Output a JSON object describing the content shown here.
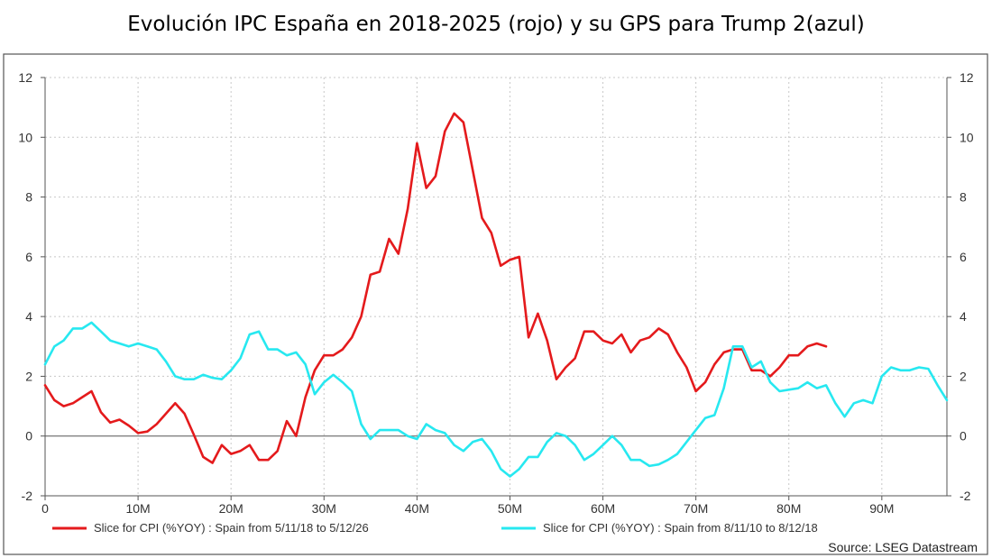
{
  "title": "Evolución IPC España en 2018-2025 (rojo) y su GPS para Trump 2(azul)",
  "chart_data": {
    "type": "line",
    "title": "Evolución IPC España en 2018-2025 (rojo) y su GPS para Trump 2(azul)",
    "xlabel": "",
    "ylabel": "",
    "xlim": [
      0,
      97
    ],
    "ylim": [
      -2,
      12
    ],
    "grid": true,
    "x_ticks": [
      0,
      10,
      20,
      30,
      40,
      50,
      60,
      70,
      80,
      90
    ],
    "x_tick_labels": [
      "0",
      "10M",
      "20M",
      "30M",
      "40M",
      "50M",
      "60M",
      "70M",
      "80M",
      "90M"
    ],
    "y_ticks": [
      -2,
      0,
      2,
      4,
      6,
      8,
      10,
      12
    ],
    "y_tick_labels": [
      "-2",
      "0",
      "2",
      "4",
      "6",
      "8",
      "10",
      "12"
    ],
    "legend_position": "bottom",
    "source": "Source: LSEG Datastream",
    "series": [
      {
        "name": "Slice for CPI (%YOY) : Spain from 5/11/18 to 5/12/26",
        "color": "#e41a1c",
        "x": [
          0,
          1,
          2,
          3,
          4,
          5,
          6,
          7,
          8,
          9,
          10,
          11,
          12,
          13,
          14,
          15,
          16,
          17,
          18,
          19,
          20,
          21,
          22,
          23,
          24,
          25,
          26,
          27,
          28,
          29,
          30,
          31,
          32,
          33,
          34,
          35,
          36,
          37,
          38,
          39,
          40,
          41,
          42,
          43,
          44,
          45,
          46,
          47,
          48,
          49,
          50,
          51,
          52,
          53,
          54,
          55,
          56,
          57,
          58,
          59,
          60,
          61,
          62,
          63,
          64,
          65,
          66,
          67,
          68,
          69,
          70,
          71,
          72,
          73,
          74,
          75,
          76,
          77,
          78,
          79,
          80,
          81,
          82,
          83,
          84
        ],
        "values": [
          1.7,
          1.2,
          1.0,
          1.1,
          1.3,
          1.5,
          0.8,
          0.45,
          0.55,
          0.35,
          0.1,
          0.15,
          0.4,
          0.75,
          1.1,
          0.75,
          0.05,
          -0.7,
          -0.9,
          -0.3,
          -0.6,
          -0.5,
          -0.3,
          -0.8,
          -0.8,
          -0.5,
          0.5,
          0.0,
          1.3,
          2.2,
          2.7,
          2.7,
          2.9,
          3.3,
          4.0,
          5.4,
          5.5,
          6.6,
          6.1,
          7.6,
          9.8,
          8.3,
          8.7,
          10.2,
          10.8,
          10.5,
          8.9,
          7.3,
          6.8,
          5.7,
          5.9,
          6.0,
          3.3,
          4.1,
          3.2,
          1.9,
          2.3,
          2.6,
          3.5,
          3.5,
          3.2,
          3.1,
          3.4,
          2.8,
          3.2,
          3.3,
          3.6,
          3.4,
          2.8,
          2.3,
          1.5,
          1.8,
          2.4,
          2.8,
          2.9,
          2.9,
          2.2,
          2.2,
          2.0,
          2.3,
          2.7,
          2.7,
          3.0,
          3.1,
          3.0
        ]
      },
      {
        "name": "Slice for CPI (%YOY) : Spain from 8/11/10 to 8/12/18",
        "color": "#27e8f0",
        "x": [
          0,
          1,
          2,
          3,
          4,
          5,
          6,
          7,
          8,
          9,
          10,
          11,
          12,
          13,
          14,
          15,
          16,
          17,
          18,
          19,
          20,
          21,
          22,
          23,
          24,
          25,
          26,
          27,
          28,
          29,
          30,
          31,
          32,
          33,
          34,
          35,
          36,
          37,
          38,
          39,
          40,
          41,
          42,
          43,
          44,
          45,
          46,
          47,
          48,
          49,
          50,
          51,
          52,
          53,
          54,
          55,
          56,
          57,
          58,
          59,
          60,
          61,
          62,
          63,
          64,
          65,
          66,
          67,
          68,
          69,
          70,
          71,
          72,
          73,
          74,
          75,
          76,
          77,
          78,
          79,
          80,
          81,
          82,
          83,
          84,
          85,
          86,
          87,
          88,
          89,
          90,
          91,
          92,
          93,
          94,
          95,
          96,
          97
        ],
        "values": [
          2.4,
          3.0,
          3.2,
          3.6,
          3.6,
          3.8,
          3.5,
          3.2,
          3.1,
          3.0,
          3.1,
          3.0,
          2.9,
          2.5,
          2.0,
          1.9,
          1.9,
          2.05,
          1.95,
          1.9,
          2.2,
          2.6,
          3.4,
          3.5,
          2.9,
          2.9,
          2.7,
          2.8,
          2.4,
          1.4,
          1.8,
          2.05,
          1.8,
          1.5,
          0.4,
          -0.1,
          0.2,
          0.2,
          0.2,
          0.0,
          -0.1,
          0.4,
          0.2,
          0.1,
          -0.3,
          -0.5,
          -0.2,
          -0.1,
          -0.5,
          -1.1,
          -1.35,
          -1.1,
          -0.7,
          -0.7,
          -0.2,
          0.1,
          0.0,
          -0.3,
          -0.8,
          -0.6,
          -0.3,
          0.0,
          -0.3,
          -0.8,
          -0.8,
          -1.0,
          -0.95,
          -0.8,
          -0.6,
          -0.2,
          0.2,
          0.6,
          0.7,
          1.6,
          3.0,
          3.0,
          2.3,
          2.5,
          1.8,
          1.5,
          1.55,
          1.6,
          1.8,
          1.6,
          1.7,
          1.1,
          0.65,
          1.1,
          1.2,
          1.1,
          2.0,
          2.3,
          2.2,
          2.2,
          2.3,
          2.25,
          1.7,
          1.2
        ]
      }
    ]
  }
}
